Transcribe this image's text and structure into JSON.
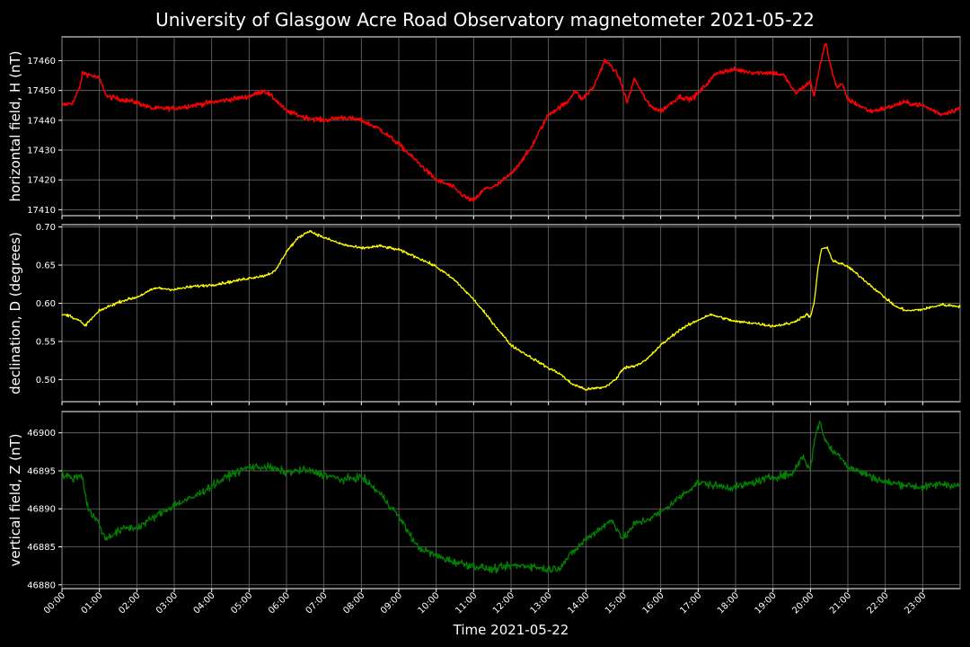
{
  "chart_data": {
    "type": "line",
    "title": "University of Glasgow Acre Road Observatory magnetometer 2021-05-22",
    "xlabel": "Time 2021-05-22",
    "xlim": [
      "00:00",
      "24:00"
    ],
    "x_ticks": [
      "00:00",
      "01:00",
      "02:00",
      "03:00",
      "04:00",
      "05:00",
      "06:00",
      "07:00",
      "08:00",
      "09:00",
      "10:00",
      "11:00",
      "12:00",
      "13:00",
      "14:00",
      "15:00",
      "16:00",
      "17:00",
      "18:00",
      "19:00",
      "20:00",
      "21:00",
      "22:00",
      "23:00"
    ],
    "grid": true,
    "panels": [
      {
        "ylabel": "horizontal field, H (nT)",
        "color": "#ff0000",
        "ylim": [
          17408,
          17468
        ],
        "y_ticks": [
          "17410",
          "17420",
          "17430",
          "17440",
          "17450",
          "17460"
        ],
        "noise": 0.8,
        "line_width": 1.5,
        "x": [
          0,
          0.3,
          0.5,
          0.55,
          0.8,
          1.0,
          1.2,
          1.6,
          2.0,
          2.4,
          3.0,
          3.5,
          4.0,
          4.5,
          5.0,
          5.4,
          5.7,
          6.0,
          6.5,
          7.0,
          7.5,
          8.0,
          8.5,
          9.0,
          9.5,
          10.0,
          10.4,
          10.8,
          11.0,
          11.3,
          11.6,
          12.0,
          12.5,
          13.0,
          13.5,
          13.7,
          13.9,
          14.2,
          14.5,
          14.7,
          14.9,
          15.1,
          15.3,
          15.5,
          15.7,
          16.0,
          16.3,
          16.5,
          16.8,
          17.0,
          17.5,
          18.0,
          18.5,
          19.0,
          19.3,
          19.6,
          19.8,
          20.0,
          20.1,
          20.25,
          20.4,
          20.55,
          20.7,
          20.85,
          21.0,
          21.3,
          21.6,
          22.0,
          22.5,
          23.0,
          23.5,
          24.0
        ],
        "y": [
          17445,
          17446,
          17452,
          17456,
          17455,
          17454,
          17448,
          17447,
          17446,
          17444,
          17444,
          17445,
          17446,
          17447,
          17448,
          17450,
          17447,
          17443,
          17441,
          17440,
          17441,
          17440,
          17437,
          17432,
          17426,
          17420,
          17418,
          17414,
          17413,
          17417,
          17418,
          17422,
          17430,
          17442,
          17446,
          17450,
          17447,
          17451,
          17460,
          17458,
          17454,
          17446,
          17454,
          17449,
          17445,
          17443,
          17446,
          17448,
          17447,
          17449,
          17456,
          17457,
          17456,
          17456,
          17455,
          17449,
          17451,
          17453,
          17448,
          17458,
          17466,
          17458,
          17451,
          17452,
          17447,
          17445,
          17443,
          17444,
          17446,
          17445,
          17442,
          17444
        ]
      },
      {
        "ylabel": "declination, D (degrees)",
        "color": "#ffff00",
        "ylim": [
          0.471,
          0.703
        ],
        "y_ticks": [
          "0.50",
          "0.55",
          "0.60",
          "0.65",
          "0.70"
        ],
        "noise": 0.0018,
        "line_width": 1.3,
        "x": [
          0,
          0.2,
          0.5,
          0.6,
          0.8,
          1.0,
          1.3,
          1.6,
          2.0,
          2.5,
          3.0,
          3.5,
          4.0,
          4.5,
          5.0,
          5.4,
          5.7,
          6.0,
          6.3,
          6.6,
          7.0,
          7.5,
          8.0,
          8.5,
          9.0,
          9.5,
          10.0,
          10.5,
          11.0,
          11.5,
          12.0,
          12.5,
          13.0,
          13.3,
          13.6,
          14.0,
          14.5,
          14.8,
          15.0,
          15.3,
          15.6,
          16.0,
          16.5,
          17.0,
          17.3,
          17.5,
          18.0,
          18.5,
          19.0,
          19.5,
          19.9,
          20.0,
          20.1,
          20.2,
          20.3,
          20.45,
          20.6,
          21.0,
          21.5,
          22.0,
          22.3,
          22.6,
          23.0,
          23.5,
          24.0
        ],
        "y": [
          0.585,
          0.584,
          0.576,
          0.57,
          0.58,
          0.59,
          0.597,
          0.603,
          0.608,
          0.62,
          0.618,
          0.622,
          0.624,
          0.628,
          0.633,
          0.636,
          0.642,
          0.668,
          0.685,
          0.695,
          0.686,
          0.677,
          0.672,
          0.675,
          0.67,
          0.66,
          0.648,
          0.63,
          0.605,
          0.575,
          0.545,
          0.53,
          0.515,
          0.508,
          0.495,
          0.487,
          0.49,
          0.5,
          0.515,
          0.518,
          0.525,
          0.545,
          0.565,
          0.578,
          0.585,
          0.583,
          0.576,
          0.574,
          0.57,
          0.574,
          0.585,
          0.582,
          0.6,
          0.645,
          0.672,
          0.672,
          0.656,
          0.648,
          0.628,
          0.607,
          0.595,
          0.59,
          0.592,
          0.598,
          0.596
        ]
      },
      {
        "ylabel": "vertical field, Z (nT)",
        "color": "#008000",
        "ylim": [
          46879.5,
          46902.8
        ],
        "y_ticks": [
          "46880",
          "46885",
          "46890",
          "46895",
          "46900"
        ],
        "noise": 0.5,
        "line_width": 1.3,
        "x": [
          0,
          0.3,
          0.5,
          0.55,
          0.7,
          1.0,
          1.15,
          1.3,
          1.7,
          2.0,
          2.5,
          3.0,
          3.5,
          4.0,
          4.5,
          5.0,
          5.5,
          6.0,
          6.5,
          7.0,
          7.5,
          8.0,
          8.5,
          9.0,
          9.5,
          10.0,
          10.5,
          11.0,
          11.5,
          12.0,
          12.5,
          13.0,
          13.3,
          13.6,
          14.0,
          14.4,
          14.7,
          15.0,
          15.3,
          15.6,
          16.0,
          16.5,
          17.0,
          17.5,
          18.0,
          18.5,
          19.0,
          19.5,
          19.8,
          20.0,
          20.1,
          20.25,
          20.4,
          20.6,
          20.8,
          21.0,
          21.5,
          22.0,
          22.5,
          23.0,
          23.5,
          24.0
        ],
        "y": [
          46894.5,
          46894,
          46894.5,
          46894,
          46890,
          46888,
          46886,
          46886.5,
          46887.5,
          46887.5,
          46889,
          46890.5,
          46891.5,
          46893,
          46894.5,
          46895.5,
          46895.5,
          46894.8,
          46895.1,
          46894.5,
          46893.8,
          46894.2,
          46892,
          46889,
          46885,
          46883.8,
          46883,
          46882.5,
          46882,
          46882.5,
          46882.5,
          46882,
          46882.3,
          46884,
          46886,
          46887.5,
          46888.5,
          46886,
          46888,
          46888.5,
          46889.5,
          46891.5,
          46893.5,
          46893,
          46892.8,
          46893.5,
          46894.2,
          46894.5,
          46897,
          46895,
          46899,
          46901.5,
          46899,
          46897.5,
          46897,
          46895.5,
          46894.5,
          46893.5,
          46893.2,
          46892.8,
          46893.3,
          46893
        ]
      }
    ]
  }
}
